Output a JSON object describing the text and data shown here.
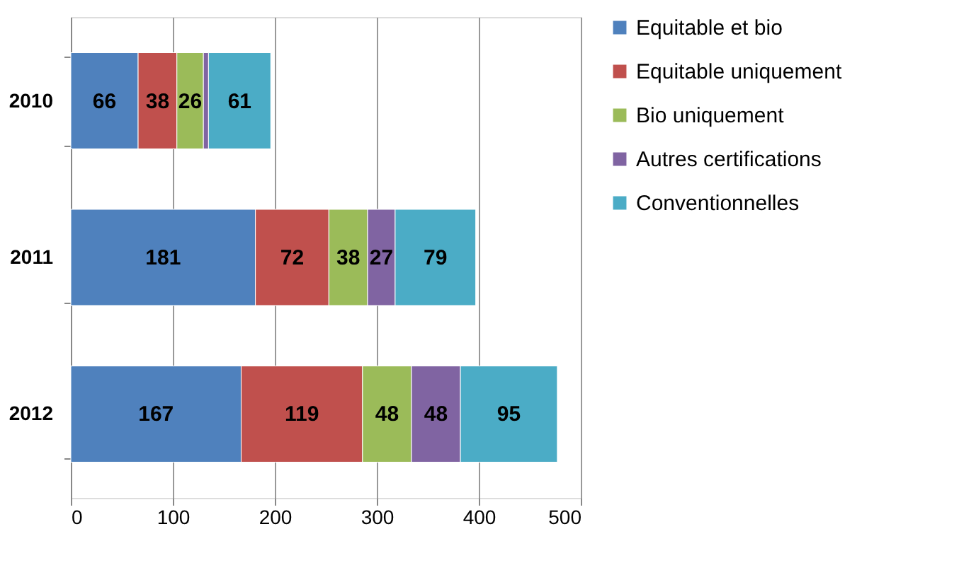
{
  "chart_data": {
    "type": "bar",
    "orientation": "horizontal",
    "stacked": true,
    "categories": [
      "2010",
      "2011",
      "2012"
    ],
    "series": [
      {
        "name": "Equitable et bio",
        "color": "#4f81bd",
        "values": [
          66,
          181,
          167
        ],
        "value_labels": [
          "66",
          "181",
          "167"
        ]
      },
      {
        "name": "Equitable uniquement",
        "color": "#c0504d",
        "values": [
          38,
          72,
          119
        ],
        "value_labels": [
          "38",
          "72",
          "119"
        ]
      },
      {
        "name": "Bio uniquement",
        "color": "#9bbb59",
        "values": [
          26,
          38,
          48
        ],
        "value_labels": [
          "26",
          "38",
          "48"
        ]
      },
      {
        "name": "Autres certifications",
        "color": "#8064a2",
        "values": [
          5,
          27,
          48
        ],
        "value_labels": [
          null,
          "27",
          "48"
        ]
      },
      {
        "name": "Conventionnelles",
        "color": "#4bacc6",
        "values": [
          61,
          79,
          95
        ],
        "value_labels": [
          "61",
          "79",
          "95"
        ]
      }
    ],
    "xlim": [
      0,
      500
    ],
    "xticks": [
      0,
      100,
      200,
      300,
      400,
      500
    ],
    "grid": "x",
    "legend": "right"
  }
}
